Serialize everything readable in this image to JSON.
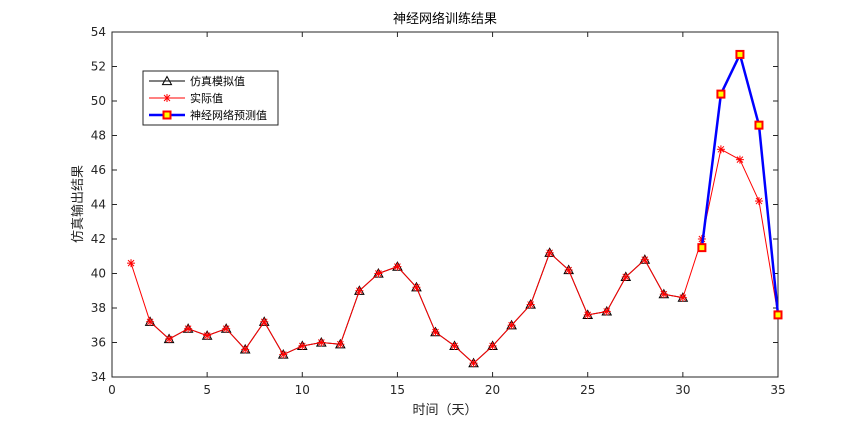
{
  "chart_data": {
    "type": "line",
    "title": "神经网络训练结果",
    "xlabel": "时间（天）",
    "ylabel": "仿真输出结果",
    "xlim": [
      0,
      35
    ],
    "ylim": [
      34,
      54
    ],
    "xticks": [
      0,
      5,
      10,
      15,
      20,
      25,
      30,
      35
    ],
    "yticks": [
      34,
      36,
      38,
      40,
      42,
      44,
      46,
      48,
      50,
      52,
      54
    ],
    "grid": false,
    "legend_position": "top-left",
    "series": [
      {
        "name": "仿真模拟值",
        "color": "#000000",
        "marker": "triangle",
        "x": [
          2,
          3,
          4,
          5,
          6,
          7,
          8,
          9,
          10,
          11,
          12,
          13,
          14,
          15,
          16,
          17,
          18,
          19,
          20,
          21,
          22,
          23,
          24,
          25,
          26,
          27,
          28,
          29,
          30
        ],
        "values": [
          37.2,
          36.2,
          36.8,
          36.4,
          36.8,
          35.6,
          37.2,
          35.3,
          35.8,
          36.0,
          35.9,
          39.0,
          40.0,
          40.4,
          39.2,
          36.6,
          35.8,
          34.8,
          35.8,
          37.0,
          38.2,
          41.2,
          40.2,
          37.6,
          37.8,
          39.8,
          40.8,
          38.8,
          38.6
        ]
      },
      {
        "name": "实际值",
        "color": "#ff0000",
        "marker": "star",
        "x": [
          1,
          2,
          3,
          4,
          5,
          6,
          7,
          8,
          9,
          10,
          11,
          12,
          13,
          14,
          15,
          16,
          17,
          18,
          19,
          20,
          21,
          22,
          23,
          24,
          25,
          26,
          27,
          28,
          29,
          30,
          31,
          32,
          33,
          34,
          35
        ],
        "values": [
          40.6,
          37.2,
          36.2,
          36.8,
          36.4,
          36.8,
          35.6,
          37.2,
          35.3,
          35.8,
          36.0,
          35.9,
          39.0,
          40.0,
          40.4,
          39.2,
          36.6,
          35.8,
          34.8,
          35.8,
          37.0,
          38.2,
          41.2,
          40.2,
          37.6,
          37.8,
          39.8,
          40.8,
          38.8,
          38.6,
          42.0,
          47.2,
          46.6,
          44.2,
          37.6
        ]
      },
      {
        "name": "神经网络预测值",
        "color": "#0000ff",
        "marker": "square",
        "x": [
          31,
          32,
          33,
          34,
          35
        ],
        "values": [
          41.5,
          50.4,
          52.7,
          48.6,
          37.6
        ]
      }
    ]
  }
}
